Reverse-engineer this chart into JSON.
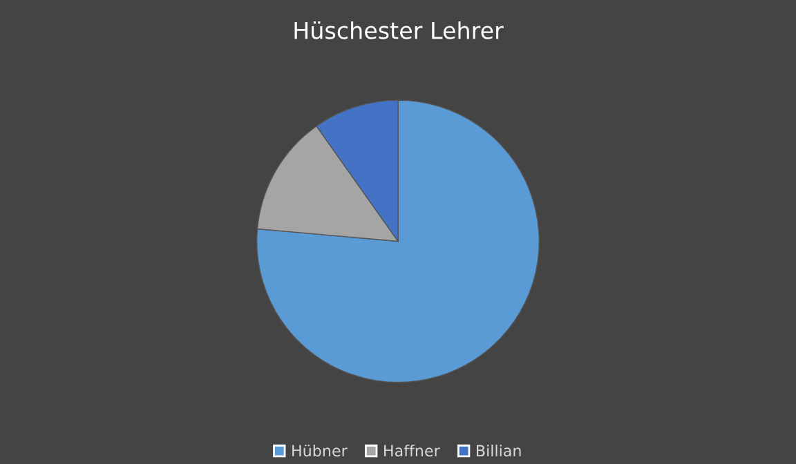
{
  "chart_data": {
    "type": "pie",
    "title": "Hüschester Lehrer",
    "categories": [
      "Hübner",
      "Haffner",
      "Billian"
    ],
    "values": [
      76.4,
      13.8,
      9.8
    ],
    "colors": [
      "#5b9bd5",
      "#a5a5a5",
      "#4472c4"
    ],
    "legend": "bottom"
  }
}
